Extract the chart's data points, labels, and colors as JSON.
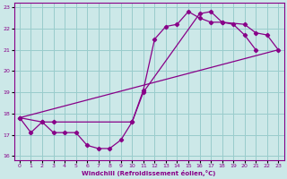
{
  "xlabel": "Windchill (Refroidissement éolien,°C)",
  "xlim": [
    -0.5,
    23.5
  ],
  "ylim": [
    15.8,
    23.2
  ],
  "xticks": [
    0,
    1,
    2,
    3,
    4,
    5,
    6,
    7,
    8,
    9,
    10,
    11,
    12,
    13,
    14,
    15,
    16,
    17,
    18,
    19,
    20,
    21,
    22,
    23
  ],
  "yticks": [
    16,
    17,
    18,
    19,
    20,
    21,
    22,
    23
  ],
  "bg_color": "#cce8e8",
  "line_color": "#880088",
  "grid_color": "#99cccc",
  "curve1": [
    [
      0,
      17.8
    ],
    [
      1,
      17.1
    ],
    [
      2,
      17.6
    ],
    [
      3,
      17.1
    ],
    [
      4,
      17.1
    ],
    [
      5,
      17.1
    ],
    [
      6,
      16.5
    ],
    [
      7,
      16.35
    ],
    [
      8,
      16.35
    ],
    [
      9,
      16.75
    ],
    [
      10,
      17.6
    ],
    [
      11,
      19.1
    ],
    [
      12,
      21.5
    ],
    [
      13,
      22.1
    ],
    [
      14,
      22.2
    ],
    [
      15,
      22.8
    ],
    [
      16,
      22.5
    ],
    [
      17,
      22.3
    ],
    [
      18,
      22.3
    ],
    [
      19,
      22.2
    ],
    [
      20,
      21.7
    ],
    [
      21,
      21.0
    ]
  ],
  "curve2": [
    [
      0,
      17.8
    ],
    [
      2,
      17.6
    ],
    [
      3,
      17.6
    ],
    [
      10,
      17.6
    ],
    [
      11,
      19.0
    ],
    [
      16,
      22.7
    ],
    [
      17,
      22.8
    ],
    [
      18,
      22.3
    ],
    [
      20,
      22.2
    ],
    [
      21,
      21.8
    ],
    [
      22,
      21.7
    ],
    [
      23,
      21.0
    ]
  ],
  "curve3": [
    [
      0,
      17.8
    ],
    [
      23,
      21.0
    ]
  ]
}
